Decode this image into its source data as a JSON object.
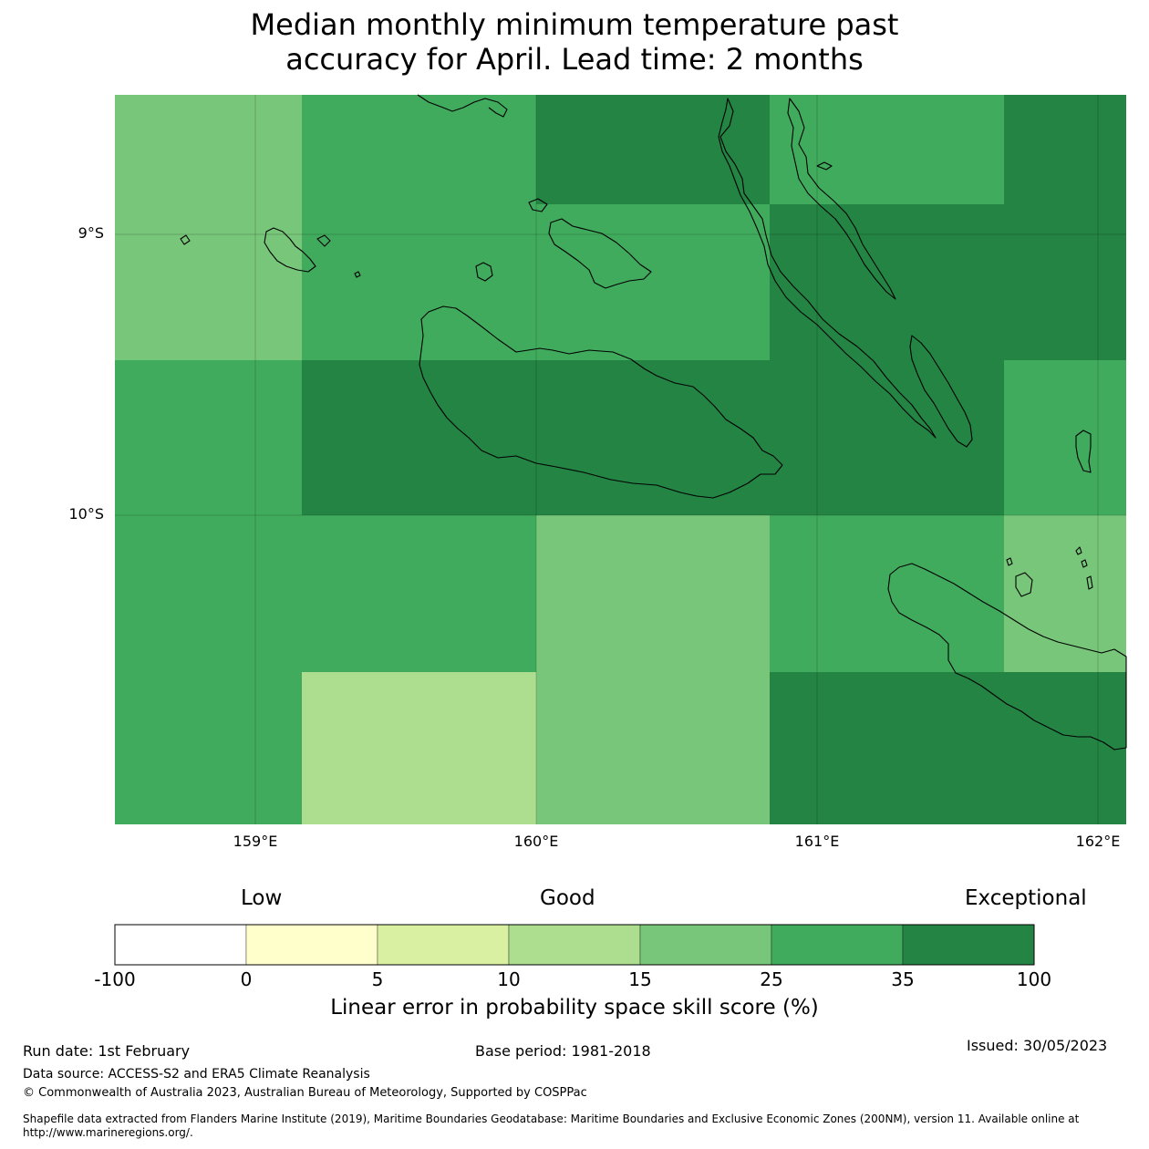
{
  "title_line1": "Median monthly minimum temperature past",
  "title_line2": "accuracy for April. Lead time: 2 months",
  "map": {
    "lat_labels": [
      "9°S",
      "10°S"
    ],
    "lon_labels": [
      "159°E",
      "160°E",
      "161°E",
      "162°E"
    ],
    "colors": {
      "c35_100": "#238443",
      "c25_35": "#41ab5d",
      "c15_25": "#78c679",
      "c10_15": "#addd8e",
      "c5_10": "#d9f0a3",
      "c0_5": "#ffffcc",
      "neg": "#ffffff"
    },
    "grid": [
      [
        "c15_25",
        "c25_35",
        "c35_100",
        "c25_35",
        "c35_100"
      ],
      [
        "c15_25",
        "c25_35",
        "c25_35",
        "c35_100",
        "c35_100"
      ],
      [
        "c25_35",
        "c35_100",
        "c35_100",
        "c35_100",
        "c25_35"
      ],
      [
        "c25_35",
        "c25_35",
        "c15_25",
        "c25_35",
        "c15_25"
      ],
      [
        "c25_35",
        "c10_15",
        "c15_25",
        "c35_100",
        "c35_100"
      ]
    ]
  },
  "categories": {
    "low": "Low",
    "good": "Good",
    "exceptional": "Exceptional"
  },
  "colorbar": {
    "ticks": [
      "-100",
      "0",
      "5",
      "10",
      "15",
      "25",
      "35",
      "100"
    ],
    "colors": [
      "#ffffff",
      "#ffffcc",
      "#d9f0a3",
      "#addd8e",
      "#78c679",
      "#41ab5d",
      "#238443"
    ],
    "label": "Linear error in probability space skill score (%)"
  },
  "footer": {
    "run_date": "Run date: 1st February",
    "base_period": "Base period: 1981-2018",
    "issued": "Issued: 30/05/2023",
    "data_source": "Data source: ACCESS-S2 and ERA5 Climate Reanalysis",
    "copyright": "© Commonwealth of Australia 2023, Australian Bureau of Meteorology, Supported by COSPPac",
    "shapefile_line1": "Shapefile data extracted from Flanders Marine Institute (2019), Maritime Boundaries Geodatabase: Maritime Boundaries and Exclusive Economic Zones (200NM), version 11. Available online at",
    "shapefile_line2": "http://www.marineregions.org/."
  }
}
